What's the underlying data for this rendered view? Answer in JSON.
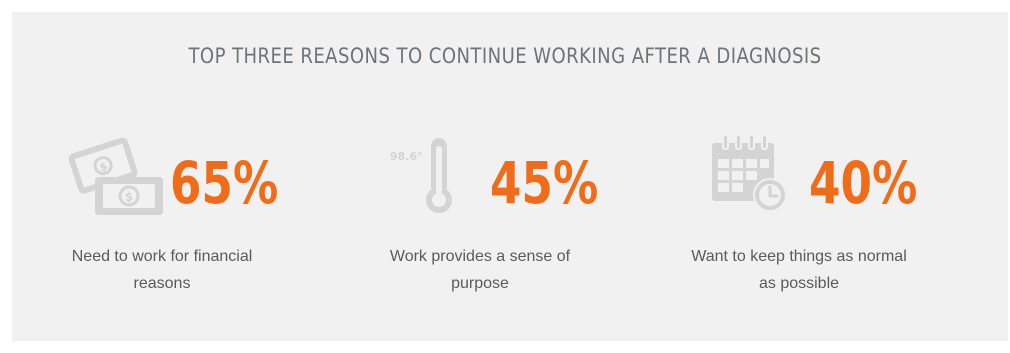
{
  "title": "TOP THREE REASONS TO CONTINUE WORKING AFTER A DIAGNOSIS",
  "colors": {
    "accent": "#ef6c1b",
    "icon": "#d4d4d4",
    "background": "#f1f1f1",
    "text": "#5a5a5a"
  },
  "stats": [
    {
      "value": "65%",
      "icon": "money-icon",
      "desc_line1": "Need to work for financial",
      "desc_line2": "reasons"
    },
    {
      "value": "45%",
      "icon": "thermometer-icon",
      "icon_label": "98.6°",
      "desc_line1": "Work provides a sense of",
      "desc_line2": "purpose"
    },
    {
      "value": "40%",
      "icon": "calendar-clock-icon",
      "desc_line1": "Want to keep things as normal",
      "desc_line2": "as possible"
    }
  ]
}
